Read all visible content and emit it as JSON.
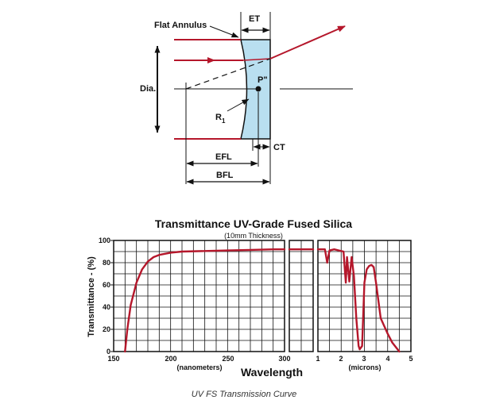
{
  "diagram": {
    "flat_annulus": "Flat Annulus",
    "et": "ET",
    "dia": "Dia.",
    "p_double_prime": "P\"",
    "r1": "R",
    "r1_sub": "1",
    "ct": "CT",
    "efl": "EFL",
    "bfl": "BFL",
    "colors": {
      "ray": "#b5172b",
      "lens_fill": "#b9dff0",
      "line": "#111111"
    }
  },
  "chart": {
    "title": "Transmittance UV-Grade Fused Silica",
    "subtitle": "(10mm Thickness)",
    "ylabel": "Transmittance - (%)",
    "xlabel": "Wavelength",
    "unit_nm": "(nanometers)",
    "unit_um": "(microns)",
    "yticks": [
      "0",
      "20",
      "40",
      "60",
      "80",
      "100"
    ],
    "xticks_nm": [
      "150",
      "200",
      "250",
      "300"
    ],
    "xticks_um": [
      "1",
      "2",
      "3",
      "4",
      "5"
    ]
  },
  "chart_data": {
    "type": "line",
    "title": "Transmittance UV-Grade Fused Silica",
    "subtitle": "(10mm Thickness)",
    "ylabel": "Transmittance - (%)",
    "xlabel": "Wavelength",
    "ylim": [
      0,
      100
    ],
    "grid": true,
    "line_color": "#b5172b",
    "panels": [
      {
        "name": "nanometers",
        "unit": "(nanometers)",
        "xlim": [
          150,
          300
        ],
        "x": [
          160,
          162,
          165,
          170,
          175,
          180,
          185,
          190,
          200,
          210,
          230,
          250,
          270,
          290,
          300
        ],
        "y": [
          0,
          20,
          42,
          62,
          74,
          81,
          85,
          87,
          89,
          90,
          90.5,
          91,
          91.5,
          92,
          92
        ]
      },
      {
        "name": "nanometers-bridge",
        "unit": "",
        "xlim": [
          300,
          400
        ],
        "x": [
          300,
          400
        ],
        "y": [
          92,
          92
        ]
      },
      {
        "name": "microns",
        "unit": "(microns)",
        "xlim": [
          1,
          5
        ],
        "x": [
          1.0,
          1.3,
          1.4,
          1.5,
          1.7,
          2.1,
          2.2,
          2.25,
          2.35,
          2.45,
          2.55,
          2.65,
          2.75,
          2.8,
          2.9,
          3.0,
          3.1,
          3.2,
          3.3,
          3.4,
          3.5,
          3.7,
          4.0,
          4.2,
          4.5
        ],
        "y": [
          92,
          92,
          80,
          91,
          92,
          90,
          62,
          85,
          63,
          85,
          68,
          30,
          5,
          2,
          5,
          62,
          74,
          77,
          78,
          76,
          62,
          30,
          16,
          8,
          0
        ]
      }
    ]
  },
  "caption": "UV FS Transmission Curve"
}
